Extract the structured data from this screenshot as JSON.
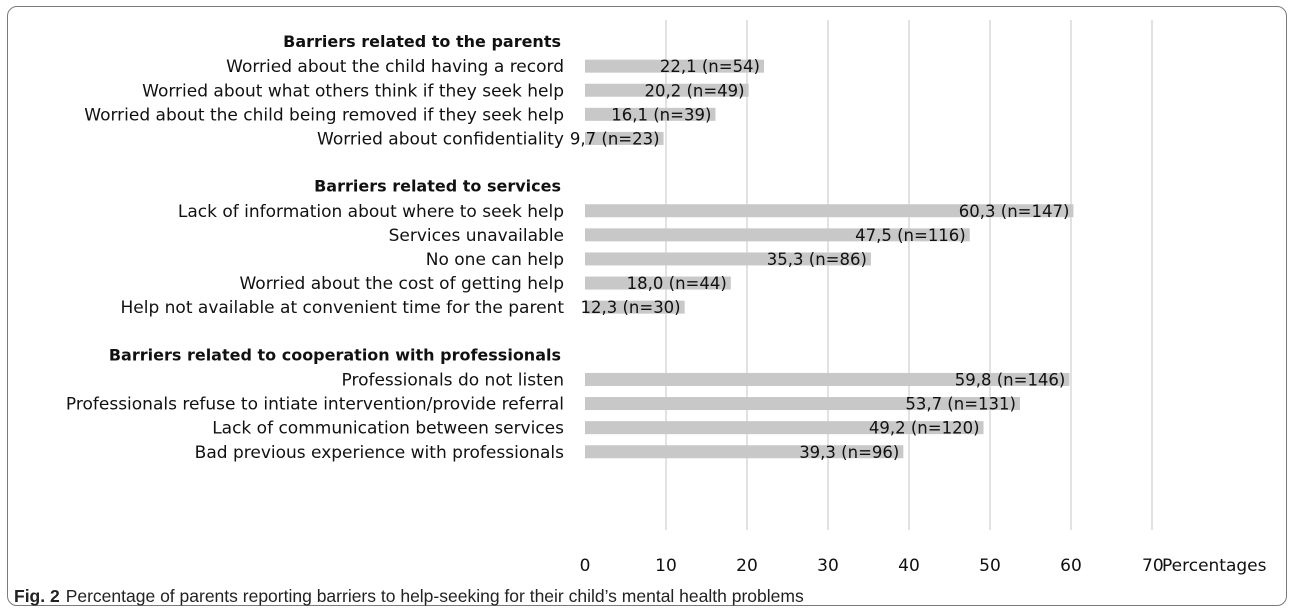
{
  "chart_data": {
    "type": "bar",
    "orientation": "horizontal",
    "groups": [
      {
        "title": "Barriers related to the parents",
        "items": [
          {
            "label": "Worried about the child having a record",
            "value": 22.1,
            "data_label": "22,1 (n=54)"
          },
          {
            "label": "Worried about what others think if they seek help",
            "value": 20.2,
            "data_label": "20,2 (n=49)"
          },
          {
            "label": "Worried about the child being removed if they seek help",
            "value": 16.1,
            "data_label": "16,1 (n=39)"
          },
          {
            "label": "Worried about confidentiality",
            "value": 9.7,
            "data_label": "9,7 (n=23)"
          }
        ]
      },
      {
        "title": "Barriers related to services",
        "items": [
          {
            "label": "Lack of information about where to seek help",
            "value": 60.3,
            "data_label": "60,3 (n=147)"
          },
          {
            "label": "Services unavailable",
            "value": 47.5,
            "data_label": "47,5 (n=116)"
          },
          {
            "label": "No one can help",
            "value": 35.3,
            "data_label": "35,3 (n=86)"
          },
          {
            "label": "Worried about the cost of getting help",
            "value": 18.0,
            "data_label": "18,0 (n=44)"
          },
          {
            "label": "Help not available at convenient time for the parent",
            "value": 12.3,
            "data_label": "12,3 (n=30)"
          }
        ]
      },
      {
        "title": "Barriers related to cooperation with professionals",
        "items": [
          {
            "label": "Professionals do not listen",
            "value": 59.8,
            "data_label": "59,8 (n=146)"
          },
          {
            "label": "Professionals refuse to intiate intervention/provide referral",
            "value": 53.7,
            "data_label": "53,7 (n=131)"
          },
          {
            "label": "Lack of communication between services",
            "value": 49.2,
            "data_label": "49,2 (n=120)"
          },
          {
            "label": "Bad previous experience with professionals",
            "value": 39.3,
            "data_label": "39,3 (n=96)"
          }
        ]
      }
    ],
    "xlabel": "Percentages",
    "xlim": [
      0,
      70
    ],
    "xticks": [
      0,
      10,
      20,
      30,
      40,
      50,
      60,
      70
    ],
    "grid": "vertical",
    "colors": {
      "bar": "#c8c8c8",
      "grid": "#d9d9d9",
      "text": "#111111"
    }
  },
  "caption": {
    "figure_label": "Fig. 2",
    "text": "Percentage of parents reporting barriers to help-seeking for their child’s mental health problems"
  }
}
